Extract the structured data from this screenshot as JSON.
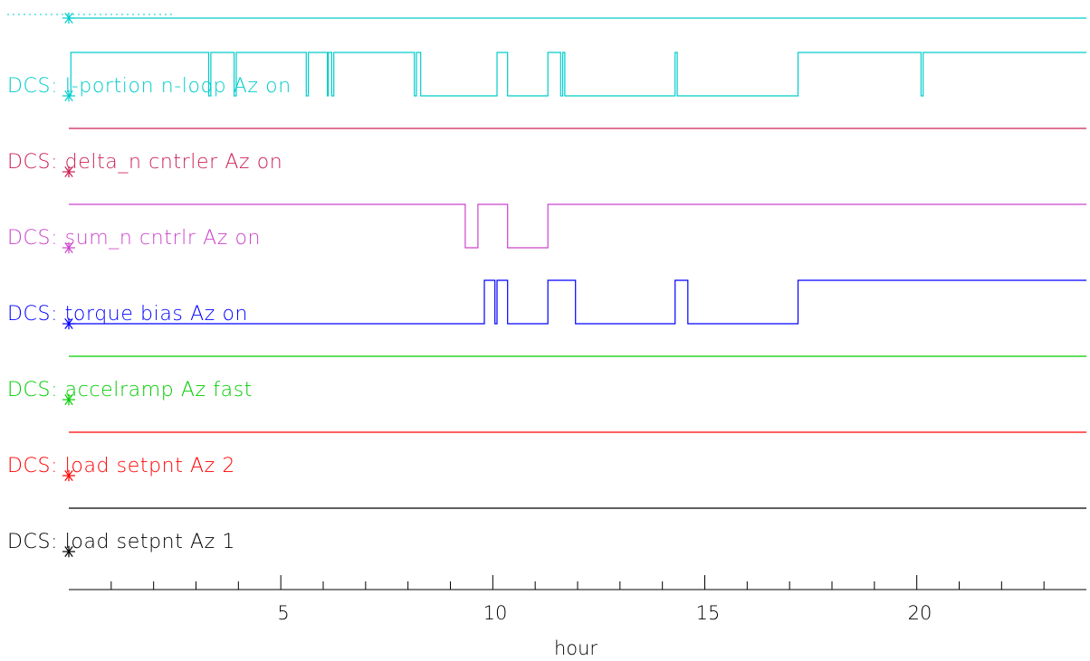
{
  "chart_data": {
    "type": "line",
    "xlabel": "hour",
    "xlim": [
      0,
      24
    ],
    "x_ticks": [
      5,
      10,
      15,
      20
    ],
    "series": [
      {
        "name": "DCS: load setpnt Az 1",
        "color": "#000000",
        "steps": [
          [
            0,
            1
          ],
          [
            24,
            1
          ]
        ]
      },
      {
        "name": "DCS: load setpnt Az 2",
        "color": "#ff0000",
        "steps": [
          [
            0,
            1
          ],
          [
            24,
            1
          ]
        ]
      },
      {
        "name": "DCS: accelramp Az fast",
        "color": "#00cc00",
        "steps": [
          [
            0,
            1
          ],
          [
            24,
            1
          ]
        ]
      },
      {
        "name": "DCS: torque bias Az on",
        "color": "#0000ff",
        "steps": [
          [
            0,
            0
          ],
          [
            9.8,
            1
          ],
          [
            10.05,
            0
          ],
          [
            10.1,
            1
          ],
          [
            10.35,
            0
          ],
          [
            11.3,
            1
          ],
          [
            11.95,
            0
          ],
          [
            14.3,
            1
          ],
          [
            14.6,
            0
          ],
          [
            17.2,
            1
          ],
          [
            24,
            1
          ]
        ]
      },
      {
        "name": "DCS: sum_n cntrlr Az on",
        "color": "#cc44cc",
        "steps": [
          [
            0,
            1
          ],
          [
            9.35,
            0
          ],
          [
            9.65,
            1
          ],
          [
            10.35,
            0
          ],
          [
            11.3,
            1
          ],
          [
            24,
            1
          ]
        ]
      },
      {
        "name": "DCS: delta_n cntrler Az on",
        "color": "#cc2255",
        "steps": [
          [
            0,
            1
          ],
          [
            24,
            1
          ]
        ]
      },
      {
        "name": "DCS: I-portion n-loop Az on",
        "color": "#00cccc",
        "steps": [
          [
            0,
            0
          ],
          [
            0.05,
            1
          ],
          [
            3.3,
            0
          ],
          [
            3.35,
            1
          ],
          [
            3.9,
            0
          ],
          [
            3.95,
            1
          ],
          [
            5.6,
            0
          ],
          [
            5.65,
            1
          ],
          [
            6.1,
            0
          ],
          [
            6.12,
            1
          ],
          [
            6.2,
            0
          ],
          [
            6.25,
            1
          ],
          [
            8.15,
            0
          ],
          [
            8.2,
            1
          ],
          [
            8.3,
            0
          ],
          [
            10.1,
            1
          ],
          [
            10.35,
            0
          ],
          [
            11.3,
            1
          ],
          [
            11.6,
            0
          ],
          [
            11.65,
            1
          ],
          [
            11.7,
            0
          ],
          [
            14.3,
            1
          ],
          [
            14.35,
            0
          ],
          [
            17.2,
            1
          ],
          [
            20.1,
            0
          ],
          [
            20.15,
            1
          ],
          [
            24,
            1
          ]
        ]
      },
      {
        "name": "",
        "color": "#00cccc",
        "steps": [
          [
            0,
            1
          ],
          [
            24,
            1
          ]
        ]
      }
    ]
  },
  "labels": {
    "s0": "DCS: load setpnt Az 1",
    "s1": "DCS: load setpnt Az 2",
    "s2": "DCS: accelramp Az fast",
    "s3": "DCS: torque bias Az on",
    "s4": "DCS: sum_n cntrlr Az on",
    "s5": "DCS: delta_n cntrler Az on",
    "s6": "DCS: I-portion n-loop Az on",
    "tick5": "5",
    "tick10": "10",
    "tick15": "15",
    "tick20": "20",
    "xlabel": "hour"
  }
}
